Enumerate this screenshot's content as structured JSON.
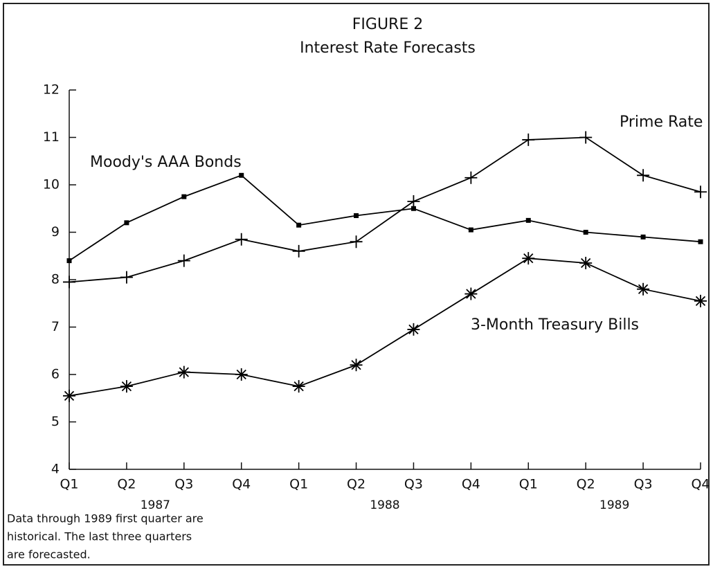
{
  "chart_data": {
    "type": "line",
    "title": "FIGURE 2",
    "subtitle": "Interest Rate Forecasts",
    "categories": [
      "Q1",
      "Q2",
      "Q3",
      "Q4",
      "Q1",
      "Q2",
      "Q3",
      "Q4",
      "Q1",
      "Q2",
      "Q3",
      "Q4"
    ],
    "groups": [
      "1987",
      "1988",
      "1989"
    ],
    "series": [
      {
        "name": "Moody's AAA Bonds",
        "color": "#000000",
        "marker": "square",
        "values": [
          8.4,
          9.2,
          9.75,
          10.2,
          9.15,
          9.35,
          9.5,
          9.05,
          9.25,
          9.0,
          8.9,
          8.8
        ]
      },
      {
        "name": "Prime Rate",
        "color": "#000000",
        "marker": "plus",
        "values": [
          7.95,
          8.05,
          8.4,
          8.85,
          8.6,
          8.8,
          9.65,
          10.15,
          10.95,
          11.0,
          10.2,
          9.85
        ]
      },
      {
        "name": "3-Month Treasury Bills",
        "color": "#000000",
        "marker": "asterisk",
        "values": [
          5.55,
          5.75,
          6.05,
          6.0,
          5.75,
          6.2,
          6.95,
          7.7,
          8.45,
          8.35,
          7.8,
          7.55
        ]
      }
    ],
    "ylim": [
      4,
      12
    ],
    "yticks": [
      4,
      5,
      6,
      7,
      8,
      9,
      10,
      11,
      12
    ],
    "grid": false,
    "footnote": [
      "Data through 1989 first quarter are",
      "historical.  The last three quarters",
      "are forecasted."
    ]
  }
}
